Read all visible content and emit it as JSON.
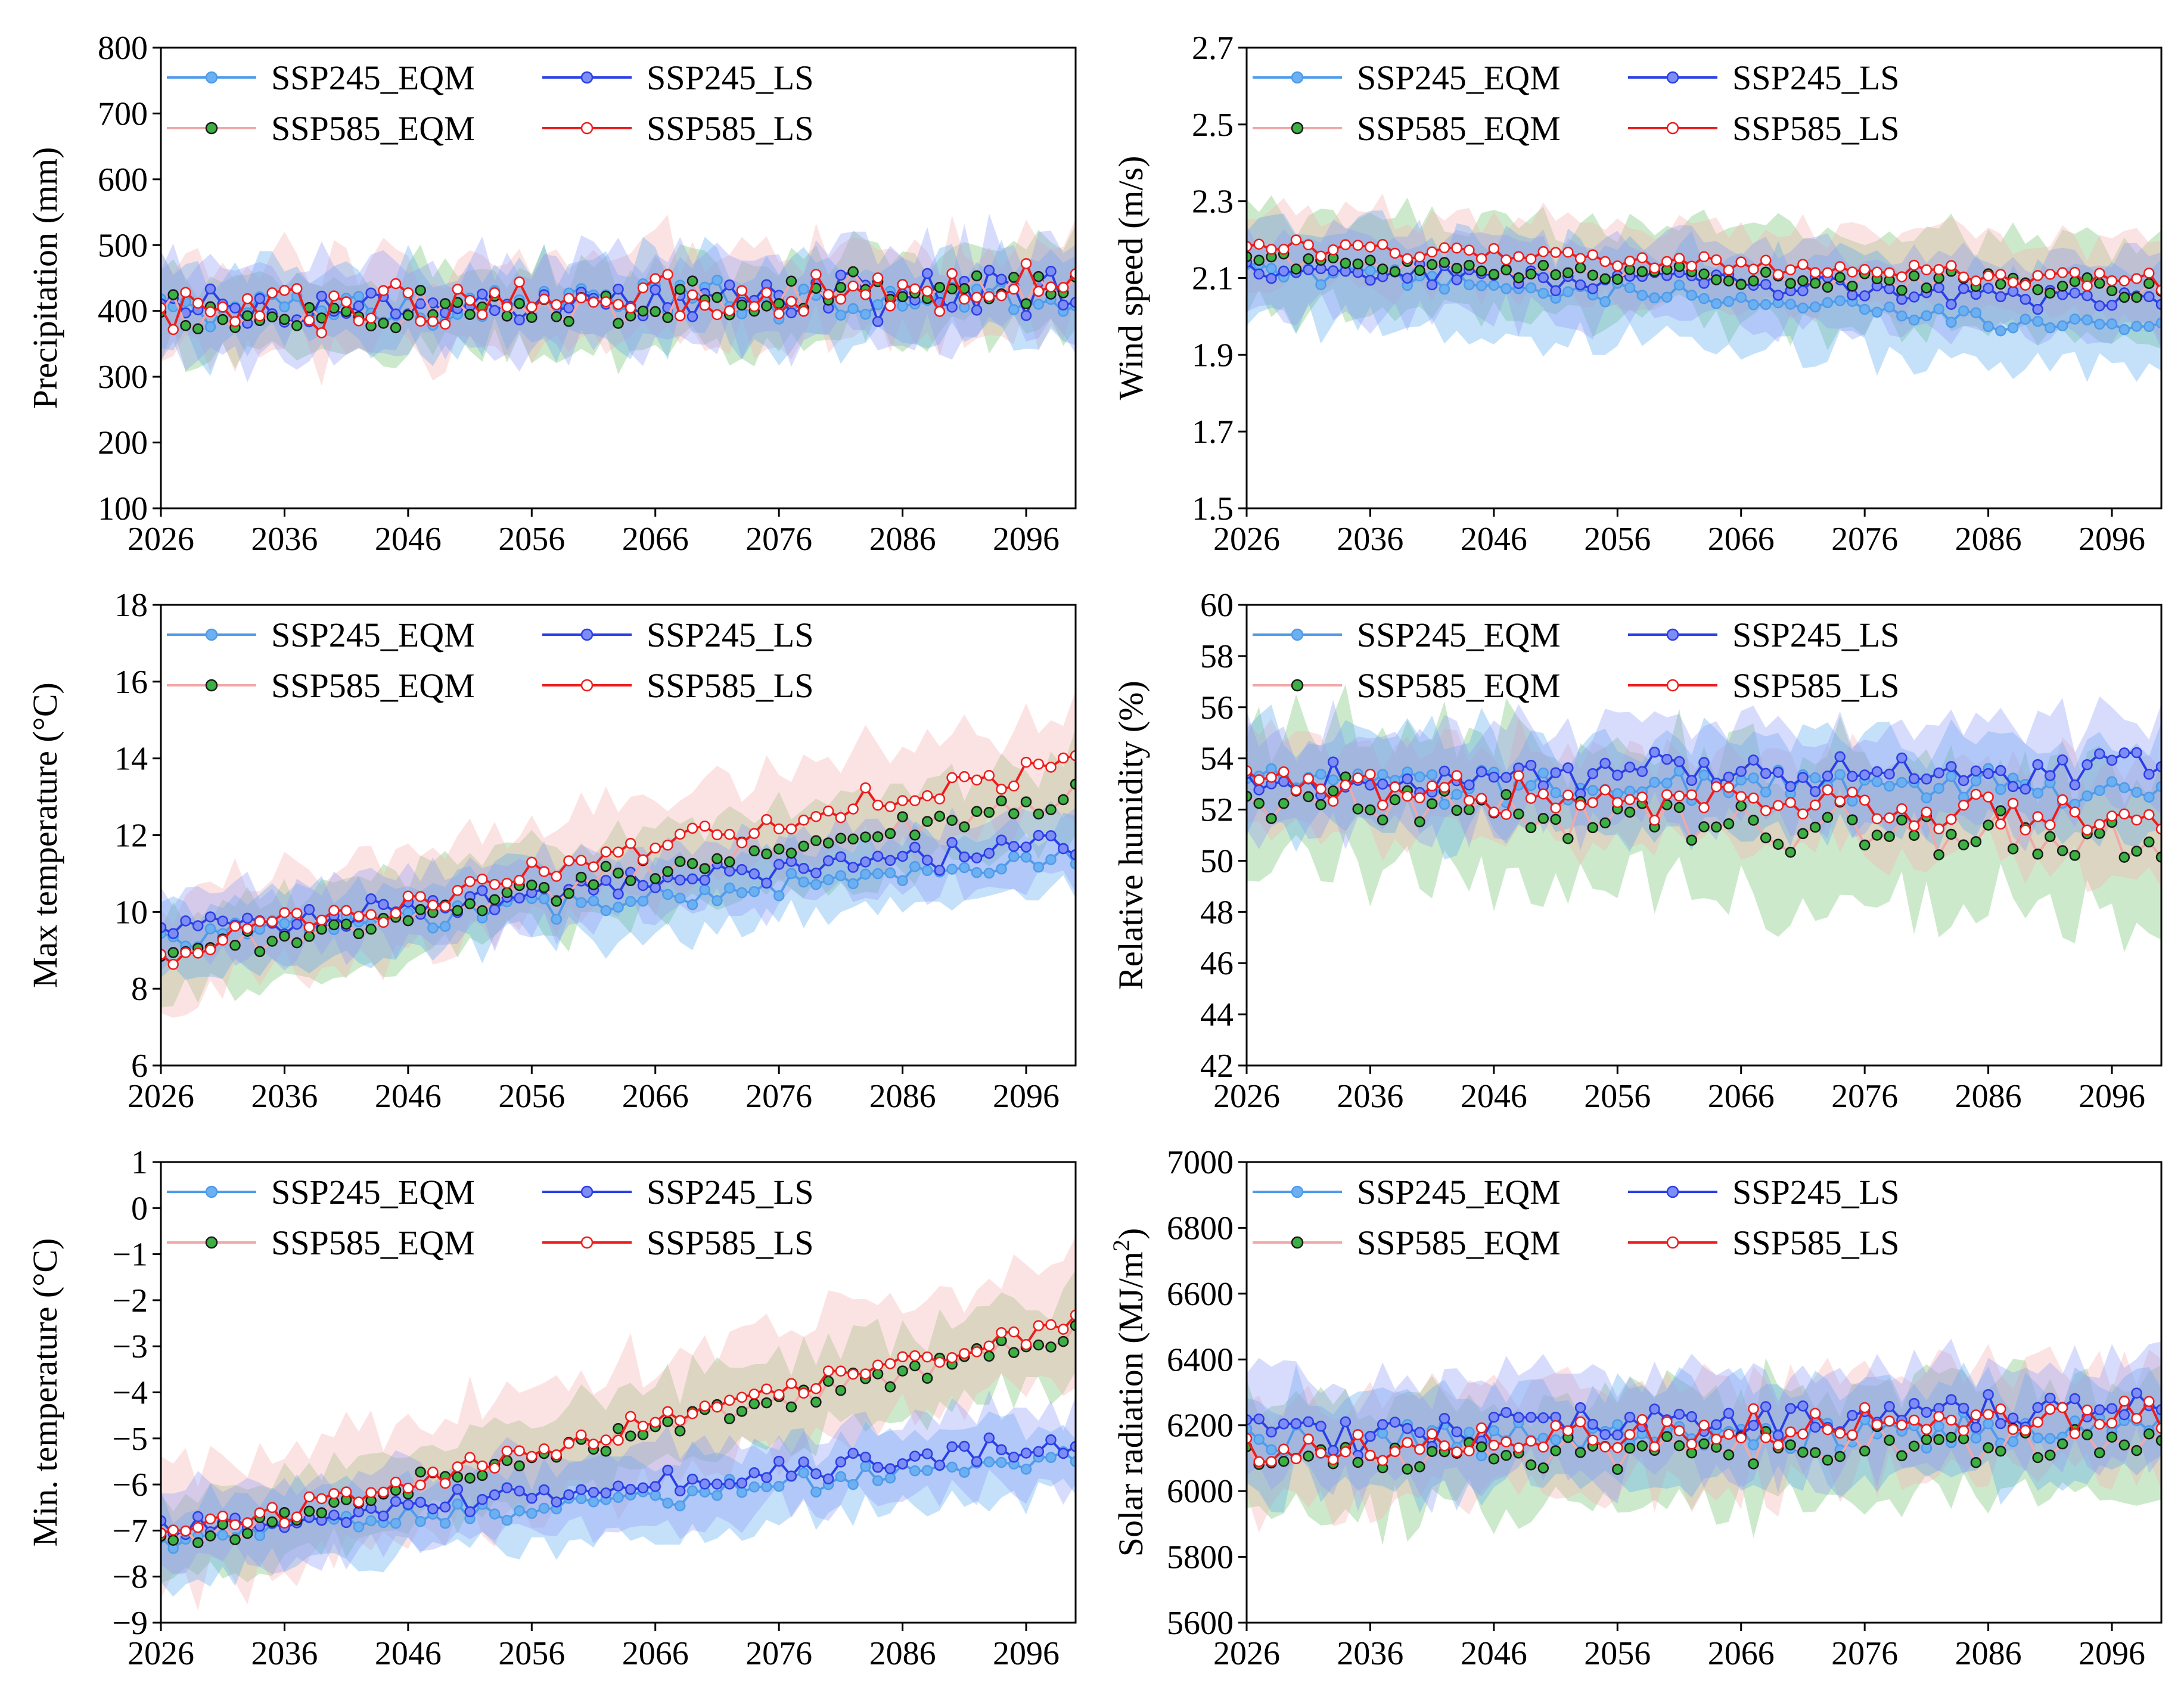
{
  "colors": {
    "SSP245_EQM": {
      "line": "#4f9bea",
      "marker": "#6cb0f2",
      "band": "#5aa8f2"
    },
    "SSP245_LS": {
      "line": "#2a3fe6",
      "marker": "#7e8cf5",
      "band": "#8f9cf7"
    },
    "SSP585_EQM": {
      "line": "#f0a8a8",
      "marker": "#3cb043",
      "band": "#6cc46a"
    },
    "SSP585_LS": {
      "line": "#ee1c1c",
      "marker": "#ffffff",
      "band": "#f7aeb0"
    }
  },
  "chart_data": [
    {
      "type": "line",
      "ylabel": "Precipitation (mm)",
      "ylim": [
        100,
        800
      ],
      "yticks": [
        100,
        200,
        300,
        400,
        500,
        600,
        700,
        800
      ],
      "xlim": [
        2026,
        2100
      ],
      "xticks": [
        2026,
        2036,
        2046,
        2056,
        2066,
        2076,
        2086,
        2096
      ],
      "legend": [
        "SSP245_EQM",
        "SSP245_LS",
        "SSP585_EQM",
        "SSP585_LS"
      ],
      "series": [
        {
          "name": "SSP245_EQM",
          "start": 400,
          "end": 428,
          "band": 55,
          "noise": 25
        },
        {
          "name": "SSP245_LS",
          "start": 395,
          "end": 432,
          "band": 65,
          "noise": 28
        },
        {
          "name": "SSP585_EQM",
          "start": 388,
          "end": 440,
          "band": 60,
          "noise": 25
        },
        {
          "name": "SSP585_LS",
          "start": 398,
          "end": 440,
          "band": 65,
          "noise": 28
        }
      ]
    },
    {
      "type": "line",
      "ylabel": "Wind speed (m/s)",
      "ylim": [
        1.5,
        2.7
      ],
      "yticks": [
        1.5,
        1.7,
        1.9,
        2.1,
        2.3,
        2.5,
        2.7
      ],
      "xlim": [
        2026,
        2100
      ],
      "xticks": [
        2026,
        2036,
        2046,
        2056,
        2066,
        2076,
        2086,
        2096
      ],
      "legend": [
        "SSP245_EQM",
        "SSP245_LS",
        "SSP585_EQM",
        "SSP585_LS"
      ],
      "series": [
        {
          "name": "SSP245_EQM",
          "start": 2.12,
          "end": 1.97,
          "band": 0.12,
          "noise": 0.025
        },
        {
          "name": "SSP245_LS",
          "start": 2.13,
          "end": 2.04,
          "band": 0.1,
          "noise": 0.025
        },
        {
          "name": "SSP585_EQM",
          "start": 2.15,
          "end": 2.07,
          "band": 0.12,
          "noise": 0.02
        },
        {
          "name": "SSP585_LS",
          "start": 2.18,
          "end": 2.09,
          "band": 0.1,
          "noise": 0.02
        }
      ]
    },
    {
      "type": "line",
      "ylabel": "Max temperature (°C)",
      "ylim": [
        6,
        18
      ],
      "yticks": [
        6,
        8,
        10,
        12,
        14,
        16,
        18
      ],
      "xlim": [
        2026,
        2100
      ],
      "xticks": [
        2026,
        2036,
        2046,
        2056,
        2066,
        2076,
        2086,
        2096
      ],
      "legend": [
        "SSP245_EQM",
        "SSP245_LS",
        "SSP585_EQM",
        "SSP585_LS"
      ],
      "series": [
        {
          "name": "SSP245_EQM",
          "start": 9.3,
          "end": 11.3,
          "band": 0.9,
          "noise": 0.3
        },
        {
          "name": "SSP245_LS",
          "start": 9.5,
          "end": 11.8,
          "band": 0.9,
          "noise": 0.3
        },
        {
          "name": "SSP585_EQM",
          "start": 8.8,
          "end": 13.0,
          "band": 1.1,
          "noise": 0.3
        },
        {
          "name": "SSP585_LS",
          "start": 8.9,
          "end": 14.0,
          "band": 1.3,
          "noise": 0.3
        }
      ]
    },
    {
      "type": "line",
      "ylabel": "Relative humidity (%)",
      "ylim": [
        42,
        60
      ],
      "yticks": [
        42,
        44,
        46,
        48,
        50,
        52,
        54,
        56,
        58,
        60
      ],
      "xlim": [
        2026,
        2100
      ],
      "xticks": [
        2026,
        2036,
        2046,
        2056,
        2066,
        2076,
        2086,
        2096
      ],
      "legend": [
        "SSP245_EQM",
        "SSP245_LS",
        "SSP585_EQM",
        "SSP585_LS"
      ],
      "series": [
        {
          "name": "SSP245_EQM",
          "start": 53.0,
          "end": 52.8,
          "band": 1.8,
          "noise": 0.6
        },
        {
          "name": "SSP245_LS",
          "start": 53.3,
          "end": 53.5,
          "band": 1.8,
          "noise": 0.6
        },
        {
          "name": "SSP585_EQM",
          "start": 52.5,
          "end": 50.6,
          "band": 2.8,
          "noise": 0.8
        },
        {
          "name": "SSP585_LS",
          "start": 53.0,
          "end": 51.5,
          "band": 1.8,
          "noise": 0.6
        }
      ]
    },
    {
      "type": "line",
      "ylabel": "Min. temperature (°C)",
      "ylim": [
        -9,
        1
      ],
      "yticks": [
        -9,
        -8,
        -7,
        -6,
        -5,
        -4,
        -3,
        -2,
        -1,
        0,
        1
      ],
      "xlim": [
        2026,
        2100
      ],
      "xticks": [
        2026,
        2036,
        2046,
        2056,
        2066,
        2076,
        2086,
        2096
      ],
      "legend": [
        "SSP245_EQM",
        "SSP245_LS",
        "SSP585_EQM",
        "SSP585_LS"
      ],
      "series": [
        {
          "name": "SSP245_EQM",
          "start": -7.2,
          "end": -5.4,
          "band": 0.8,
          "noise": 0.2
        },
        {
          "name": "SSP245_LS",
          "start": -7.0,
          "end": -5.1,
          "band": 0.8,
          "noise": 0.2
        },
        {
          "name": "SSP585_EQM",
          "start": -7.3,
          "end": -2.7,
          "band": 0.9,
          "noise": 0.2
        },
        {
          "name": "SSP585_LS",
          "start": -7.2,
          "end": -2.5,
          "band": 1.3,
          "noise": 0.2
        }
      ]
    },
    {
      "type": "line",
      "ylabel": "Solar radiation (MJ/m",
      "ylabel_sup": "2",
      "ylabel_tail": ")",
      "ylim": [
        5600,
        7000
      ],
      "yticks": [
        5600,
        5800,
        6000,
        6200,
        6400,
        6600,
        6800,
        7000
      ],
      "xlim": [
        2026,
        2100
      ],
      "xticks": [
        2026,
        2036,
        2046,
        2056,
        2066,
        2076,
        2086,
        2096
      ],
      "legend": [
        "SSP245_EQM",
        "SSP245_LS",
        "SSP585_EQM",
        "SSP585_LS"
      ],
      "series": [
        {
          "name": "SSP245_EQM",
          "start": 6140,
          "end": 6190,
          "band": 140,
          "noise": 45
        },
        {
          "name": "SSP245_LS",
          "start": 6170,
          "end": 6250,
          "band": 150,
          "noise": 50
        },
        {
          "name": "SSP585_EQM",
          "start": 6100,
          "end": 6150,
          "band": 170,
          "noise": 45
        },
        {
          "name": "SSP585_LS",
          "start": 6130,
          "end": 6230,
          "band": 160,
          "noise": 50
        }
      ]
    }
  ]
}
